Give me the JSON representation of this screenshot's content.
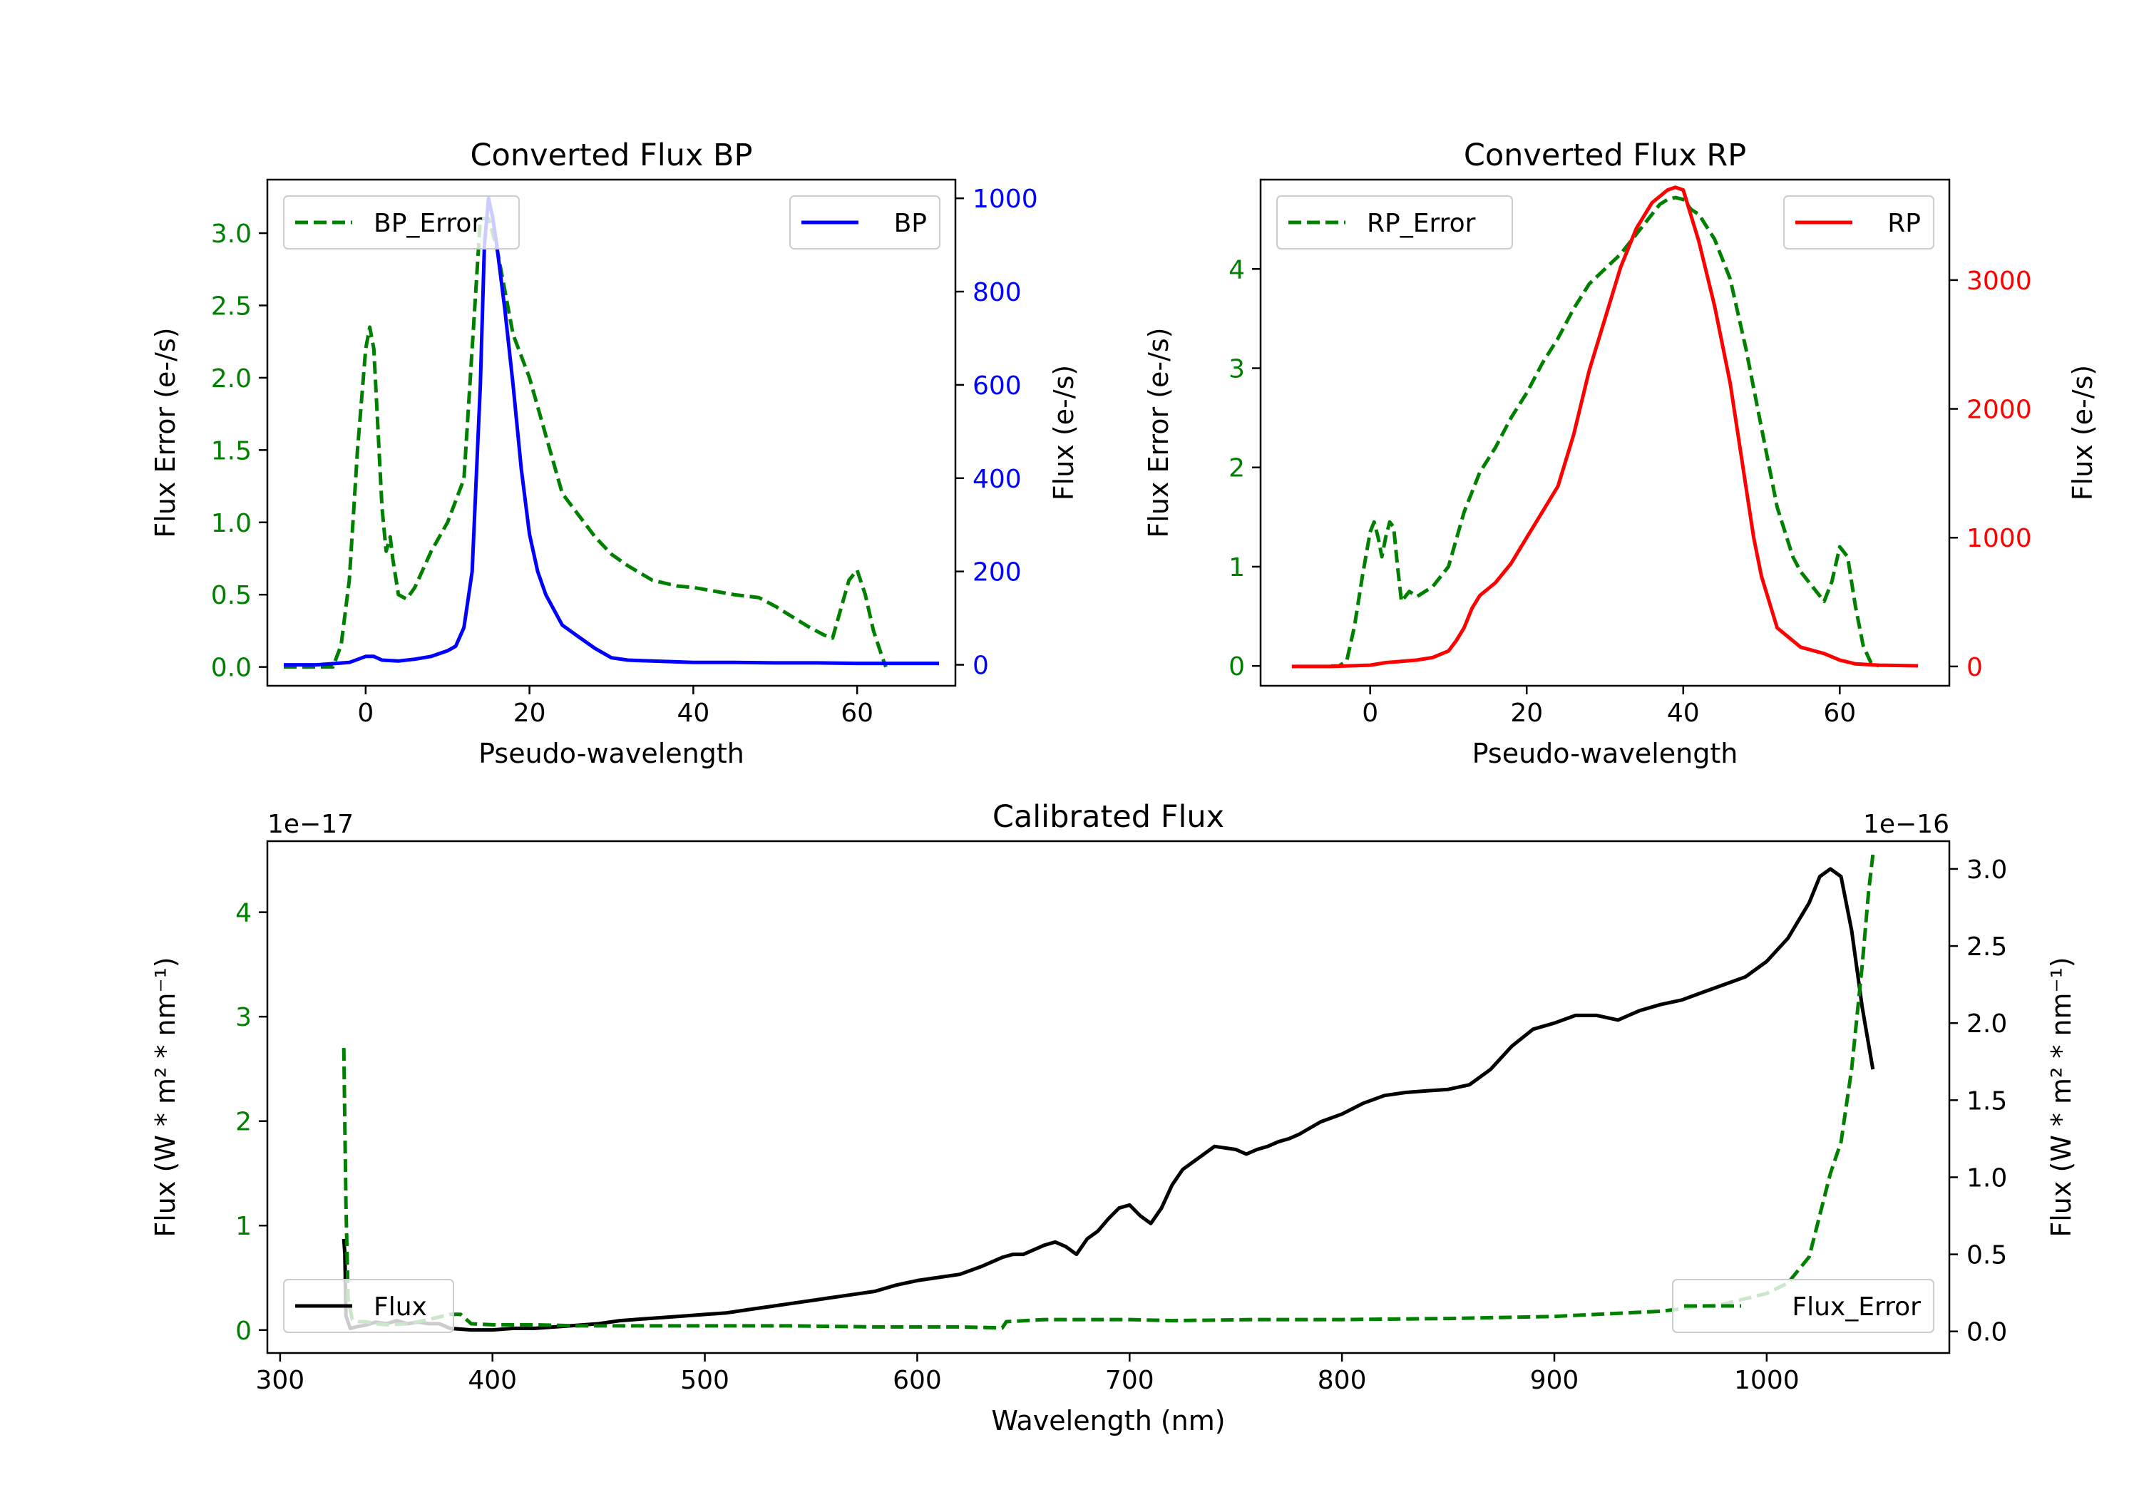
{
  "colors": {
    "green": "#008000",
    "blue": "#0000ff",
    "red": "#ff0000",
    "black": "#000000"
  },
  "chart_data": [
    {
      "id": "bp",
      "type": "line",
      "title": "Converted Flux BP",
      "xlabel": "Pseudo-wavelength",
      "ylabel_left": "Flux Error (e-/s)",
      "ylabel_right": "Flux (e-/s)",
      "xlim": [
        -12,
        72
      ],
      "ylim_left": [
        -0.13,
        3.37
      ],
      "ylim_right": [
        -45,
        1040
      ],
      "xticks": [
        "0",
        "20",
        "40",
        "60"
      ],
      "yticks_left": [
        "0.0",
        "0.5",
        "1.0",
        "1.5",
        "2.0",
        "2.5",
        "3.0"
      ],
      "yticks_right": [
        "0",
        "200",
        "400",
        "600",
        "800",
        "1000"
      ],
      "legend_left": "BP_Error",
      "legend_right": "BP",
      "series": [
        {
          "name": "BP_Error",
          "axis": "left",
          "color": "green",
          "dash": true,
          "x": [
            -10,
            -4,
            -3,
            -2,
            -1,
            0,
            0.5,
            1,
            2,
            2.5,
            3,
            3.3,
            4,
            5,
            6,
            8,
            10,
            12,
            13,
            14,
            15,
            16,
            17,
            18,
            20,
            22,
            24,
            26,
            28,
            30,
            32,
            35,
            38,
            40,
            42,
            45,
            48,
            50,
            52,
            54,
            56,
            57,
            58,
            59,
            60,
            61,
            62,
            63,
            63.5
          ],
          "values": [
            0,
            0,
            0.15,
            0.6,
            1.5,
            2.2,
            2.35,
            2.2,
            1.1,
            0.8,
            0.9,
            0.75,
            0.5,
            0.47,
            0.55,
            0.8,
            1.0,
            1.3,
            2.2,
            3.1,
            3.1,
            2.9,
            2.6,
            2.3,
            2.0,
            1.6,
            1.2,
            1.05,
            0.9,
            0.78,
            0.7,
            0.6,
            0.56,
            0.55,
            0.53,
            0.5,
            0.48,
            0.42,
            0.35,
            0.28,
            0.22,
            0.2,
            0.4,
            0.6,
            0.67,
            0.5,
            0.25,
            0.08,
            0
          ]
        },
        {
          "name": "BP",
          "axis": "right",
          "color": "blue",
          "dash": false,
          "x": [
            -10,
            -6,
            -2,
            0,
            1,
            2,
            4,
            6,
            8,
            10,
            11,
            12,
            13,
            14,
            14.5,
            15,
            15.5,
            16,
            17,
            18,
            19,
            20,
            21,
            22,
            24,
            26,
            28,
            30,
            32,
            35,
            40,
            45,
            50,
            55,
            60,
            65,
            70
          ],
          "values": [
            0,
            0,
            5,
            18,
            18,
            10,
            8,
            12,
            18,
            30,
            40,
            80,
            200,
            600,
            900,
            1000,
            960,
            900,
            760,
            600,
            420,
            280,
            200,
            150,
            85,
            60,
            35,
            15,
            10,
            8,
            5,
            5,
            4,
            4,
            3,
            3,
            3
          ]
        }
      ]
    },
    {
      "id": "rp",
      "type": "line",
      "title": "Converted Flux RP",
      "xlabel": "Pseudo-wavelength",
      "ylabel_left": "Flux Error (e-/s)",
      "ylabel_right": "Flux (e-/s)",
      "xlim": [
        -14,
        74
      ],
      "ylim_left": [
        -0.2,
        4.9
      ],
      "ylim_right": [
        -150,
        3780
      ],
      "xticks": [
        "0",
        "20",
        "40",
        "60"
      ],
      "yticks_left": [
        "0",
        "1",
        "2",
        "3",
        "4"
      ],
      "yticks_right": [
        "0",
        "1000",
        "2000",
        "3000"
      ],
      "legend_left": "RP_Error",
      "legend_right": "RP",
      "series": [
        {
          "name": "RP_Error",
          "axis": "left",
          "color": "green",
          "dash": true,
          "x": [
            -5,
            -4,
            -3,
            -2,
            -1,
            0,
            0.5,
            1,
            1.5,
            2,
            2.5,
            3,
            3.5,
            4,
            5,
            6,
            8,
            10,
            12,
            14,
            16,
            18,
            20,
            22,
            24,
            26,
            28,
            30,
            32,
            34,
            36,
            37,
            38,
            39,
            40,
            41,
            42,
            44,
            46,
            48,
            50,
            52,
            54,
            55,
            56,
            57,
            58,
            59,
            60,
            61,
            62,
            63,
            64,
            65
          ],
          "values": [
            0,
            0,
            0.05,
            0.4,
            0.9,
            1.35,
            1.45,
            1.3,
            1.1,
            1.3,
            1.45,
            1.4,
            1.0,
            0.65,
            0.75,
            0.7,
            0.8,
            1.0,
            1.55,
            1.95,
            2.2,
            2.5,
            2.75,
            3.05,
            3.3,
            3.6,
            3.85,
            4.0,
            4.15,
            4.35,
            4.55,
            4.65,
            4.7,
            4.72,
            4.7,
            4.6,
            4.55,
            4.3,
            3.9,
            3.2,
            2.4,
            1.6,
            1.1,
            0.95,
            0.85,
            0.75,
            0.65,
            0.85,
            1.2,
            1.1,
            0.6,
            0.2,
            0.03,
            0
          ]
        },
        {
          "name": "RP",
          "axis": "right",
          "color": "red",
          "dash": false,
          "x": [
            -10,
            -5,
            0,
            2,
            4,
            6,
            8,
            10,
            11,
            12,
            13,
            14,
            16,
            18,
            20,
            22,
            24,
            26,
            28,
            30,
            32,
            34,
            36,
            38,
            39,
            40,
            42,
            44,
            46,
            47,
            48,
            49,
            50,
            52,
            55,
            58,
            60,
            62,
            65,
            70
          ],
          "values": [
            0,
            0,
            10,
            30,
            40,
            50,
            70,
            120,
            200,
            300,
            450,
            550,
            650,
            800,
            1000,
            1200,
            1400,
            1800,
            2300,
            2700,
            3100,
            3400,
            3600,
            3700,
            3720,
            3700,
            3300,
            2800,
            2200,
            1800,
            1400,
            1000,
            700,
            300,
            150,
            100,
            50,
            20,
            10,
            5
          ]
        }
      ]
    },
    {
      "id": "calibrated",
      "type": "line",
      "title": "Calibrated Flux",
      "xlabel": "Wavelength (nm)",
      "ylabel_left": "Flux (W * m² * nm⁻¹)",
      "ylabel_right": "Flux (W * m² * nm⁻¹)",
      "offset_left": "1e−17",
      "offset_right": "1e−16",
      "xlim": [
        294,
        1086
      ],
      "ylim_left": [
        -0.22,
        4.68
      ],
      "ylim_right": [
        -0.14,
        3.18
      ],
      "xticks": [
        "300",
        "400",
        "500",
        "600",
        "700",
        "800",
        "900",
        "1000"
      ],
      "yticks_left": [
        "0",
        "1",
        "2",
        "3",
        "4"
      ],
      "yticks_right": [
        "0.0",
        "0.5",
        "1.0",
        "1.5",
        "2.0",
        "2.5",
        "3.0"
      ],
      "legend_left": "Flux",
      "legend_right": "Flux_Error",
      "series": [
        {
          "name": "Flux",
          "axis": "right",
          "color": "black",
          "dash": false,
          "x": [
            330,
            330.5,
            331,
            333,
            336,
            340,
            345,
            350,
            355,
            360,
            365,
            370,
            375,
            380,
            390,
            400,
            410,
            420,
            430,
            440,
            450,
            460,
            470,
            480,
            490,
            500,
            510,
            520,
            530,
            540,
            550,
            560,
            570,
            580,
            590,
            600,
            610,
            620,
            630,
            640,
            645,
            650,
            655,
            660,
            665,
            670,
            675,
            680,
            685,
            690,
            695,
            700,
            705,
            710,
            715,
            720,
            725,
            730,
            740,
            750,
            755,
            760,
            765,
            770,
            775,
            780,
            790,
            800,
            810,
            820,
            830,
            840,
            850,
            860,
            870,
            880,
            890,
            900,
            910,
            920,
            930,
            940,
            950,
            960,
            970,
            980,
            990,
            1000,
            1010,
            1020,
            1025,
            1030,
            1035,
            1040,
            1045,
            1050
          ],
          "values": [
            0.6,
            0.5,
            0.1,
            0.02,
            0.03,
            0.04,
            0.06,
            0.05,
            0.07,
            0.05,
            0.06,
            0.05,
            0.05,
            0.02,
            0.01,
            0.01,
            0.02,
            0.02,
            0.03,
            0.04,
            0.05,
            0.07,
            0.08,
            0.09,
            0.1,
            0.11,
            0.12,
            0.14,
            0.16,
            0.18,
            0.2,
            0.22,
            0.24,
            0.26,
            0.3,
            0.33,
            0.35,
            0.37,
            0.42,
            0.48,
            0.5,
            0.5,
            0.53,
            0.56,
            0.58,
            0.55,
            0.5,
            0.6,
            0.65,
            0.73,
            0.8,
            0.82,
            0.75,
            0.7,
            0.8,
            0.95,
            1.05,
            1.1,
            1.2,
            1.18,
            1.15,
            1.18,
            1.2,
            1.23,
            1.25,
            1.28,
            1.36,
            1.41,
            1.48,
            1.53,
            1.55,
            1.56,
            1.57,
            1.6,
            1.7,
            1.85,
            1.96,
            2.0,
            2.05,
            2.05,
            2.02,
            2.08,
            2.12,
            2.15,
            2.2,
            2.25,
            2.3,
            2.4,
            2.55,
            2.78,
            2.95,
            3.0,
            2.95,
            2.6,
            2.1,
            1.7
          ]
        },
        {
          "name": "Flux_Error",
          "axis": "left",
          "color": "green",
          "dash": true,
          "x": [
            330,
            331,
            332,
            334,
            337,
            340,
            345,
            350,
            360,
            370,
            380,
            385,
            390,
            400,
            420,
            440,
            460,
            480,
            500,
            540,
            580,
            600,
            620,
            640,
            642,
            660,
            700,
            720,
            760,
            800,
            850,
            900,
            950,
            980,
            1000,
            1010,
            1020,
            1025,
            1030,
            1035,
            1040,
            1045,
            1048,
            1050
          ],
          "values": [
            2.7,
            1.2,
            0.3,
            0.1,
            0.08,
            0.08,
            0.06,
            0.05,
            0.06,
            0.1,
            0.15,
            0.15,
            0.06,
            0.05,
            0.05,
            0.04,
            0.04,
            0.04,
            0.04,
            0.04,
            0.03,
            0.03,
            0.03,
            0.02,
            0.08,
            0.1,
            0.1,
            0.09,
            0.1,
            0.1,
            0.11,
            0.13,
            0.18,
            0.25,
            0.35,
            0.45,
            0.7,
            1.1,
            1.5,
            1.8,
            2.5,
            3.5,
            4.2,
            4.55
          ]
        }
      ]
    }
  ]
}
